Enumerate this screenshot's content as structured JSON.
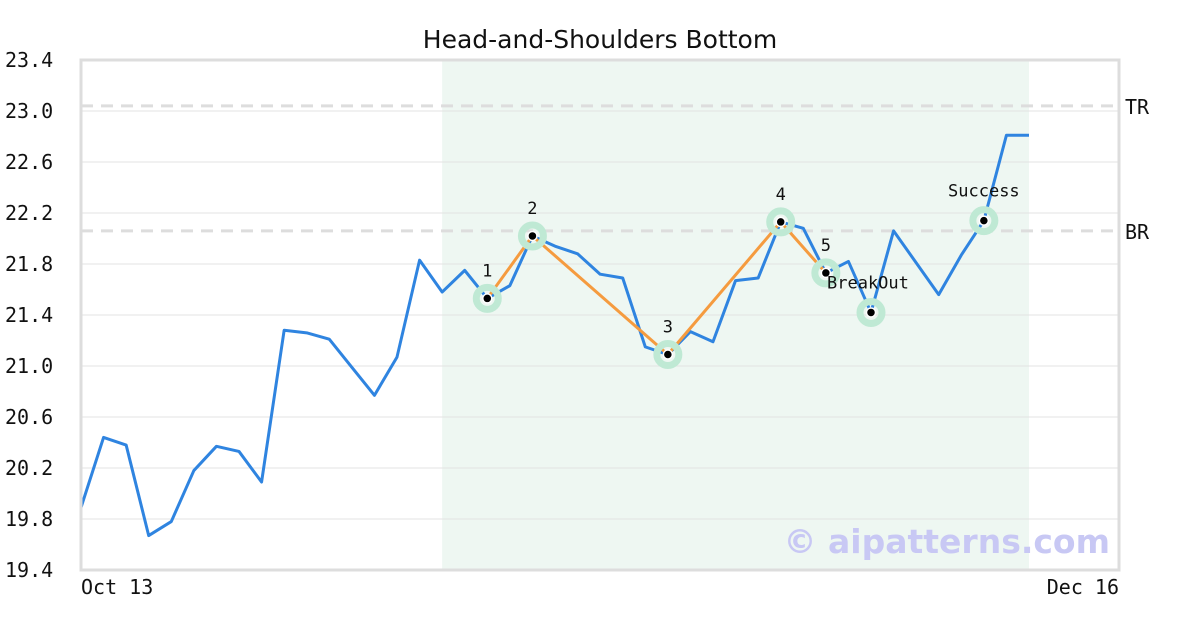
{
  "chart_data": {
    "type": "line",
    "title": "Head-and-Shoulders Bottom",
    "x_start_label": "Oct 13",
    "x_end_label": "Dec 16",
    "ylim": [
      19.4,
      23.4
    ],
    "yticks": [
      "19.4",
      "19.8",
      "20.2",
      "20.6",
      "21.0",
      "21.4",
      "21.8",
      "22.2",
      "22.6",
      "23.0",
      "23.4"
    ],
    "grid": true,
    "series": [
      {
        "values": [
          19.89,
          20.44,
          20.38,
          19.67,
          19.78,
          20.18,
          20.37,
          20.33,
          20.09,
          21.28,
          21.26,
          21.21,
          20.99,
          20.77,
          21.07,
          21.83,
          21.58,
          21.75,
          21.53,
          21.63,
          22.02,
          21.94,
          21.88,
          21.72,
          21.69,
          21.15,
          21.09,
          21.27,
          21.19,
          21.67,
          21.69,
          22.13,
          22.08,
          21.73,
          21.82,
          21.42,
          22.06,
          21.81,
          21.56,
          21.87,
          22.14,
          22.81,
          22.81
        ],
        "color": "#2f84e0"
      }
    ],
    "pattern_line": {
      "color": "#f59b3f",
      "points": [
        {
          "index": 18,
          "value": 21.53,
          "label": "1"
        },
        {
          "index": 20,
          "value": 22.02,
          "label": "2"
        },
        {
          "index": 26,
          "value": 21.09,
          "label": "3"
        },
        {
          "index": 31,
          "value": 22.13,
          "label": "4"
        },
        {
          "index": 33,
          "value": 21.73,
          "label": "5"
        }
      ]
    },
    "events": [
      {
        "index": 35,
        "value": 21.42,
        "label": "BreakOut"
      },
      {
        "index": 40,
        "value": 22.14,
        "label": "Success"
      }
    ],
    "reference_lines": [
      {
        "label": "TR",
        "value": 23.04
      },
      {
        "label": "BR",
        "value": 22.06
      }
    ],
    "highlight_range": {
      "start_index": 16,
      "end_index": 42,
      "color": "#eef7f2"
    },
    "marker_color": "#bfe9d4",
    "watermark": "© aipatterns.com"
  }
}
